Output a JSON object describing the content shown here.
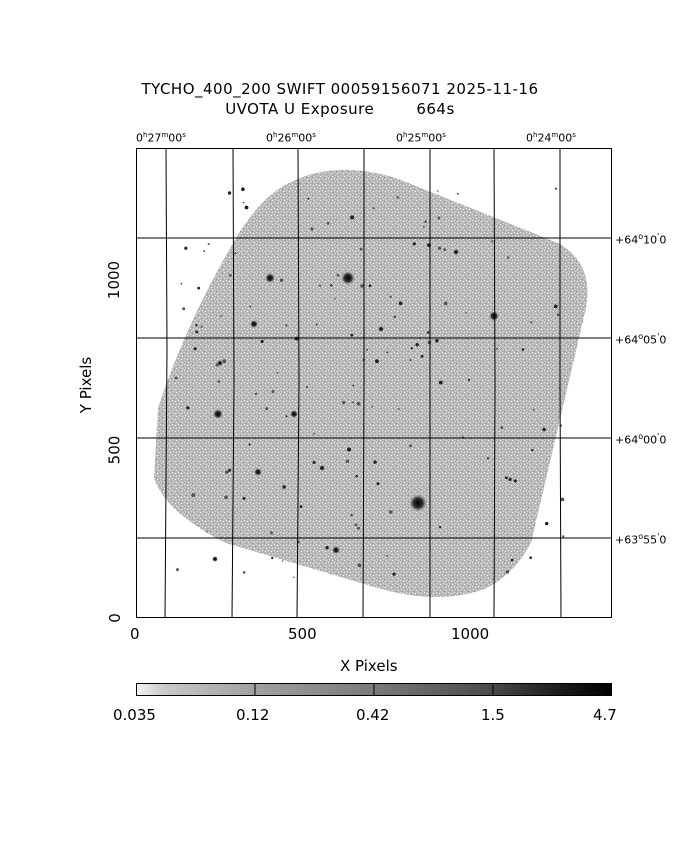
{
  "title": {
    "line1": "TYCHO_400_200 SWIFT 00059156071 2025-11-16",
    "line2": "UVOTA U Exposure        664s"
  },
  "axes": {
    "xlabel": "X Pixels",
    "ylabel": "Y Pixels",
    "x_ticks": [
      "0",
      "500",
      "1000"
    ],
    "y_ticks": [
      "0",
      "500",
      "1000"
    ],
    "ra_labels": [
      {
        "h": "0",
        "m": "27",
        "s": "00"
      },
      {
        "h": "0",
        "m": "26",
        "s": "00"
      },
      {
        "h": "0",
        "m": "25",
        "s": "00"
      },
      {
        "h": "0",
        "m": "24",
        "s": "00"
      }
    ],
    "dec_labels": [
      {
        "sign": "+",
        "d": "64",
        "m": "10",
        "s": "0"
      },
      {
        "sign": "+",
        "d": "64",
        "m": "05",
        "s": "0"
      },
      {
        "sign": "+",
        "d": "64",
        "m": "00",
        "s": "0"
      },
      {
        "sign": "+",
        "d": "63",
        "m": "55",
        "s": "0"
      }
    ]
  },
  "colorbar": {
    "labels": [
      "0.035",
      "0.12",
      "0.42",
      "1.5",
      "4.7"
    ],
    "scale": "log",
    "colormap": "gray-reversed"
  },
  "colors": {
    "background": "#ffffff",
    "field": "#a8a8a8",
    "grid": "#000000"
  }
}
